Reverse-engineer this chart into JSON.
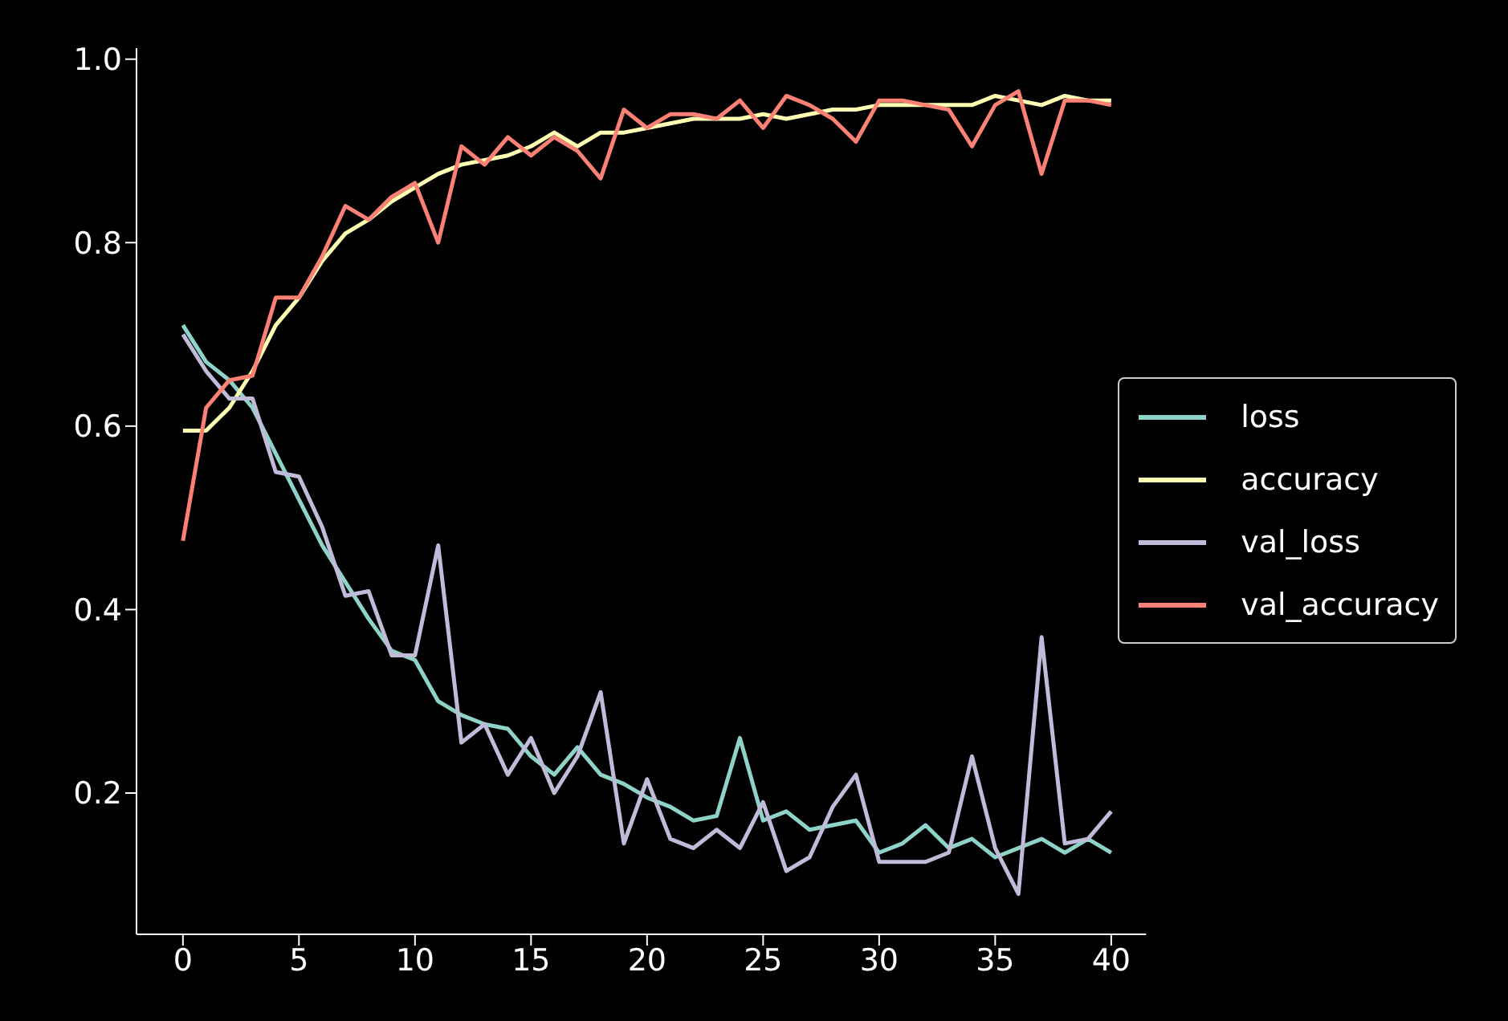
{
  "chart_data": {
    "type": "line",
    "x": [
      0,
      1,
      2,
      3,
      4,
      5,
      6,
      7,
      8,
      9,
      10,
      11,
      12,
      13,
      14,
      15,
      16,
      17,
      18,
      19,
      20,
      21,
      22,
      23,
      24,
      25,
      26,
      27,
      28,
      29,
      30,
      31,
      32,
      33,
      34,
      35,
      36,
      37,
      38,
      39,
      40
    ],
    "series": [
      {
        "name": "loss",
        "color": "#8dd3c7",
        "values": [
          0.71,
          0.67,
          0.65,
          0.62,
          0.57,
          0.52,
          0.47,
          0.43,
          0.39,
          0.355,
          0.345,
          0.3,
          0.285,
          0.275,
          0.27,
          0.24,
          0.22,
          0.25,
          0.22,
          0.21,
          0.195,
          0.185,
          0.17,
          0.175,
          0.26,
          0.17,
          0.18,
          0.16,
          0.165,
          0.17,
          0.135,
          0.145,
          0.165,
          0.14,
          0.15,
          0.13,
          0.14,
          0.15,
          0.135,
          0.15,
          0.135
        ]
      },
      {
        "name": "accuracy",
        "color": "#feffb3",
        "values": [
          0.595,
          0.595,
          0.62,
          0.66,
          0.71,
          0.74,
          0.78,
          0.81,
          0.825,
          0.845,
          0.86,
          0.875,
          0.885,
          0.89,
          0.895,
          0.905,
          0.92,
          0.905,
          0.92,
          0.92,
          0.925,
          0.93,
          0.935,
          0.935,
          0.935,
          0.94,
          0.935,
          0.94,
          0.945,
          0.945,
          0.95,
          0.95,
          0.95,
          0.95,
          0.95,
          0.96,
          0.955,
          0.95,
          0.96,
          0.955,
          0.955
        ]
      },
      {
        "name": "val_loss",
        "color": "#bfbbd9",
        "values": [
          0.7,
          0.66,
          0.63,
          0.63,
          0.55,
          0.545,
          0.49,
          0.415,
          0.42,
          0.35,
          0.35,
          0.47,
          0.255,
          0.275,
          0.22,
          0.26,
          0.2,
          0.24,
          0.31,
          0.145,
          0.215,
          0.15,
          0.14,
          0.16,
          0.14,
          0.19,
          0.115,
          0.13,
          0.185,
          0.22,
          0.125,
          0.125,
          0.125,
          0.135,
          0.24,
          0.14,
          0.09,
          0.37,
          0.145,
          0.15,
          0.18
        ]
      },
      {
        "name": "val_accuracy",
        "color": "#fa8174",
        "values": [
          0.475,
          0.62,
          0.65,
          0.655,
          0.74,
          0.74,
          0.785,
          0.84,
          0.825,
          0.85,
          0.865,
          0.8,
          0.905,
          0.885,
          0.915,
          0.895,
          0.915,
          0.9,
          0.87,
          0.945,
          0.925,
          0.94,
          0.94,
          0.935,
          0.955,
          0.925,
          0.96,
          0.95,
          0.935,
          0.91,
          0.955,
          0.955,
          0.95,
          0.945,
          0.905,
          0.95,
          0.965,
          0.875,
          0.955,
          0.955,
          0.95
        ]
      }
    ],
    "xlim": [
      -2,
      41.5
    ],
    "xticks": [
      0,
      5,
      10,
      15,
      20,
      25,
      30,
      35,
      40
    ],
    "ylim": [
      0.046,
      1.012
    ],
    "yticks": [
      0.2,
      0.4,
      0.6,
      0.8,
      {
        "value": 1,
        "label": "1.0"
      }
    ],
    "legend": "center right",
    "grid": false,
    "marker": "none",
    "line_style": "solid"
  }
}
